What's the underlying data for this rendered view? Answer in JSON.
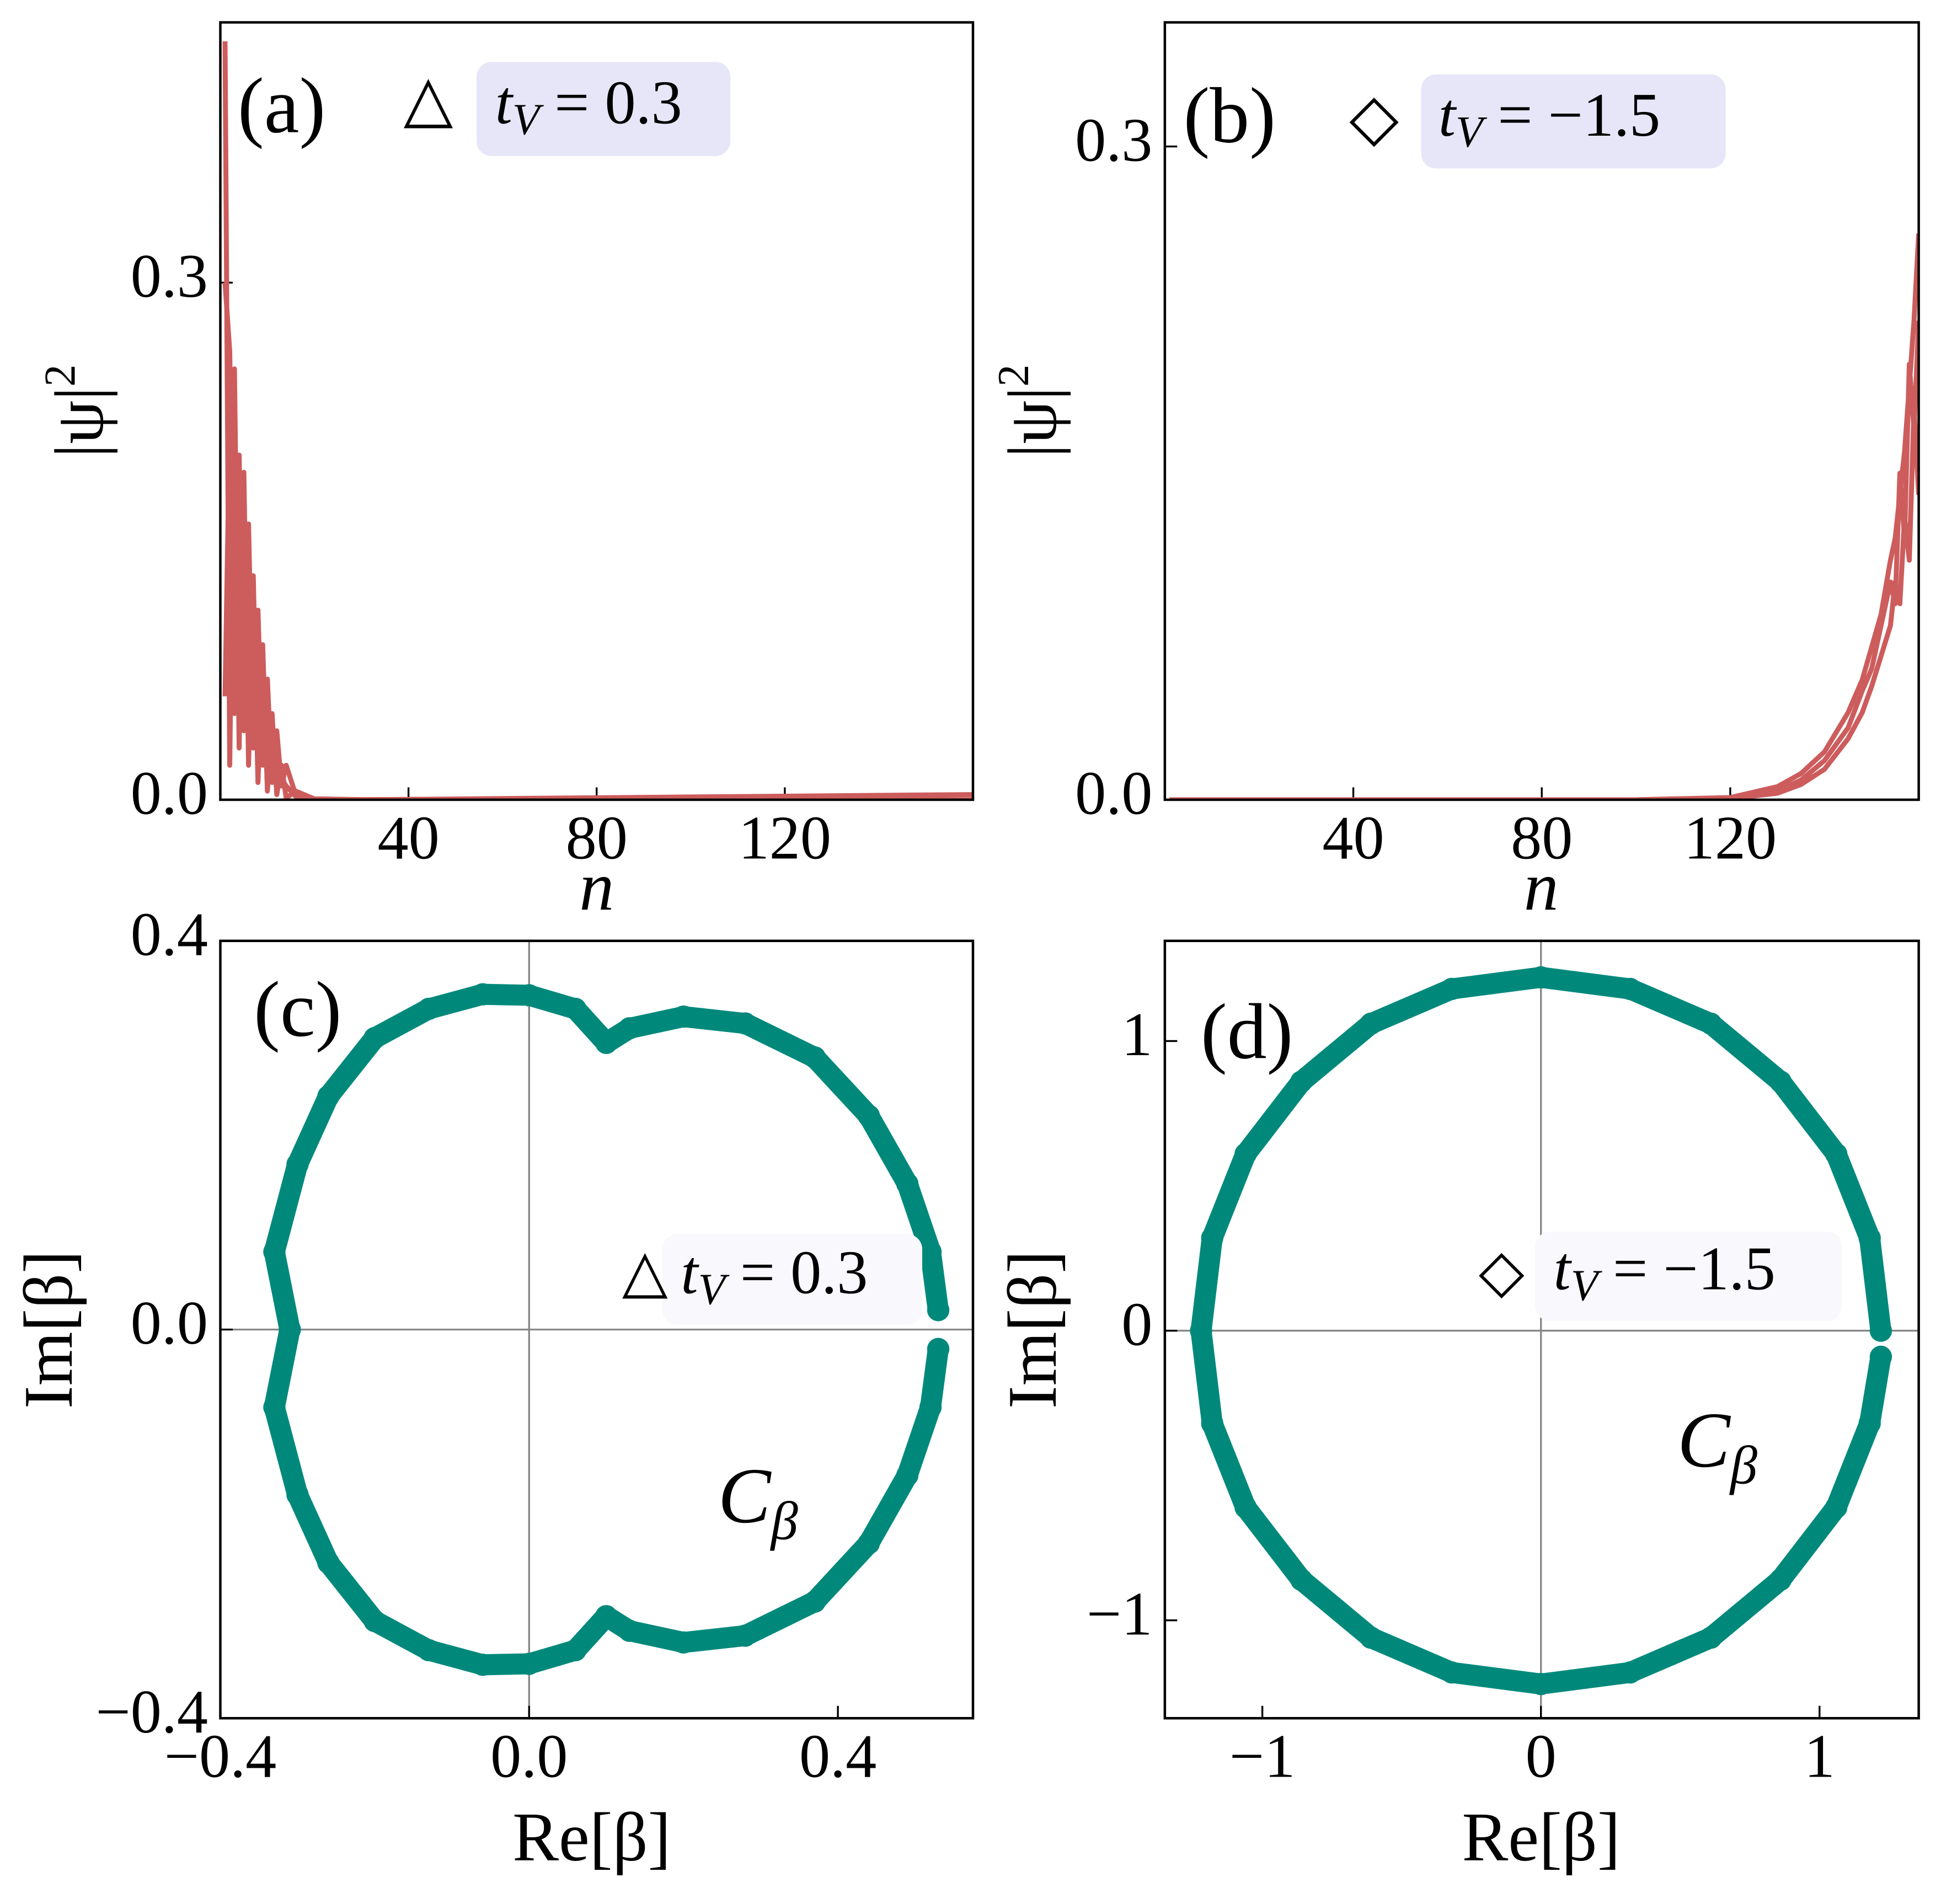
{
  "chart_data": [
    {
      "type": "line",
      "panel_label": "(a)",
      "x": [
        1,
        2,
        3,
        4,
        5,
        6,
        7,
        8,
        9,
        10,
        11,
        12,
        13,
        14,
        16,
        20,
        30,
        160
      ],
      "series": [
        {
          "color": "#cd5c5c",
          "values": [
            0.44,
            0.02,
            0.25,
            0.03,
            0.19,
            0.02,
            0.13,
            0.01,
            0.09,
            0.005,
            0.05,
            0.003,
            0.02,
            0.001,
            0.005,
            0.0005,
            0.0001,
            0
          ]
        },
        {
          "color": "#cd5c5c",
          "values": [
            0.3,
            0.26,
            0.05,
            0.2,
            0.04,
            0.16,
            0.03,
            0.11,
            0.02,
            0.07,
            0.01,
            0.04,
            0.008,
            0.02,
            0.003,
            0.0005,
            0,
            0
          ]
        },
        {
          "color": "#cd5c5c",
          "values": [
            0.06,
            0.22,
            0.18,
            0.1,
            0.15,
            0.08,
            0.1,
            0.06,
            0.07,
            0.04,
            0.035,
            0.02,
            0.012,
            0.008,
            0.002,
            0.0003,
            0,
            0.003
          ]
        }
      ],
      "xlim": [
        0,
        160
      ],
      "xticks": [
        40,
        80,
        120
      ],
      "ylim": [
        0,
        0.451
      ],
      "yticks": [
        {
          "value": 0,
          "label": "0.0"
        },
        0.3
      ],
      "xlabel": "n",
      "ylabel": {
        "text": "|ψ|",
        "superscript": "2"
      },
      "annotation": {
        "marker": "△",
        "symbol": "t",
        "subscript": "V",
        "text": "= 0.3"
      }
    },
    {
      "type": "line",
      "panel_label": "(b)",
      "x": [
        1,
        100,
        120,
        130,
        135,
        140,
        145,
        148,
        150,
        152,
        154,
        155,
        156,
        157,
        158,
        159,
        160
      ],
      "series": [
        {
          "color": "#cd5c5c",
          "values": [
            0,
            0,
            0.001,
            0.006,
            0.012,
            0.022,
            0.04,
            0.055,
            0.07,
            0.085,
            0.11,
            0.12,
            0.14,
            0.16,
            0.19,
            0.22,
            0.26
          ]
        },
        {
          "color": "#cd5c5c",
          "values": [
            0,
            0,
            0.0008,
            0.004,
            0.009,
            0.018,
            0.033,
            0.05,
            0.06,
            0.08,
            0.1,
            0.09,
            0.15,
            0.12,
            0.2,
            0.17,
            0.22
          ]
        },
        {
          "color": "#cd5c5c",
          "values": [
            0,
            0,
            0.0005,
            0.003,
            0.007,
            0.014,
            0.028,
            0.04,
            0.052,
            0.066,
            0.08,
            0.1,
            0.09,
            0.13,
            0.11,
            0.18,
            0.14
          ]
        }
      ],
      "xlim": [
        0,
        160
      ],
      "xticks": [
        40,
        80,
        120
      ],
      "ylim": [
        0,
        0.357
      ],
      "yticks": [
        {
          "value": 0,
          "label": "0.0"
        },
        0.3
      ],
      "xlabel": "n",
      "ylabel": {
        "text": "|ψ|",
        "superscript": "2"
      },
      "annotation": {
        "marker": "◇",
        "symbol": "t",
        "subscript": "V",
        "text": "= −1.5"
      }
    },
    {
      "type": "scatter",
      "panel_label": "(c)",
      "series": [
        {
          "color": "#00897b",
          "x": [
            0.53,
            0.52,
            0.49,
            0.44,
            0.37,
            0.28,
            0.2,
            0.13,
            0.1,
            0.06,
            0.0,
            -0.06,
            -0.13,
            -0.2,
            -0.26,
            -0.3,
            -0.33,
            -0.31,
            -0.33,
            -0.3,
            -0.26,
            -0.2,
            -0.13,
            -0.06,
            0.0,
            0.06,
            0.1,
            0.13,
            0.2,
            0.28,
            0.37,
            0.44,
            0.49,
            0.52,
            0.53
          ],
          "values": [
            0.02,
            0.08,
            0.15,
            0.22,
            0.28,
            0.315,
            0.322,
            0.31,
            0.295,
            0.33,
            0.344,
            0.345,
            0.33,
            0.3,
            0.24,
            0.17,
            0.08,
            0.0,
            -0.08,
            -0.17,
            -0.24,
            -0.3,
            -0.33,
            -0.345,
            -0.344,
            -0.33,
            -0.295,
            -0.31,
            -0.322,
            -0.315,
            -0.28,
            -0.22,
            -0.15,
            -0.08,
            -0.02
          ]
        }
      ],
      "xlim": [
        -0.4,
        0.575
      ],
      "xticks": [
        {
          "value": -0.4,
          "label": "−0.4"
        },
        {
          "value": 0,
          "label": "0.0"
        },
        0.4
      ],
      "ylim": [
        -0.4,
        0.4
      ],
      "yticks": [
        {
          "value": -0.4,
          "label": "−0.4"
        },
        {
          "value": 0,
          "label": "0.0"
        },
        0.4
      ],
      "xlabel": "Re[β]",
      "ylabel": {
        "text": "Im[β]"
      },
      "annotation": {
        "marker": "△",
        "symbol": "t",
        "subscript": "V",
        "text": "= 0.3"
      },
      "curve_label": {
        "symbol": "C",
        "subscript": "β"
      }
    },
    {
      "type": "scatter",
      "panel_label": "(d)",
      "series": [
        {
          "color": "#00897b",
          "x": [
            1.22,
            1.18,
            1.06,
            0.86,
            0.61,
            0.32,
            0,
            -0.32,
            -0.61,
            -0.86,
            -1.06,
            -1.18,
            -1.22,
            -1.18,
            -1.06,
            -0.86,
            -0.61,
            -0.32,
            0,
            0.32,
            0.61,
            0.86,
            1.06,
            1.18,
            1.22
          ],
          "values": [
            0,
            0.32,
            0.61,
            0.86,
            1.06,
            1.18,
            1.22,
            1.18,
            1.06,
            0.86,
            0.61,
            0.32,
            0,
            -0.32,
            -0.61,
            -0.86,
            -1.06,
            -1.18,
            -1.22,
            -1.18,
            -1.06,
            -0.86,
            -0.61,
            -0.32,
            -0.09
          ]
        }
      ],
      "xlim": [
        -1.35,
        1.356
      ],
      "xticks": [
        {
          "value": -1,
          "label": "−1"
        },
        0,
        1
      ],
      "ylim": [
        -1.338,
        1.346
      ],
      "yticks": [
        {
          "value": -1,
          "label": "−1"
        },
        0,
        1
      ],
      "xlabel": "Re[β]",
      "ylabel": {
        "text": "Im[β]"
      },
      "annotation": {
        "marker": "◇",
        "symbol": "t",
        "subscript": "V",
        "text": "= −1.5"
      },
      "curve_label": {
        "symbol": "C",
        "subscript": "β"
      }
    }
  ]
}
